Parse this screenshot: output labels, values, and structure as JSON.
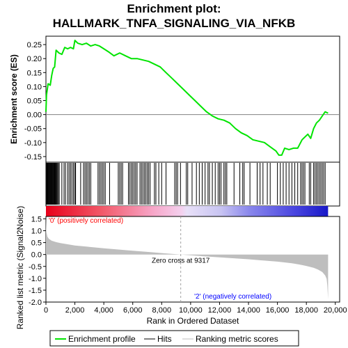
{
  "chart_data": {
    "type": "line",
    "title_line1": "Enrichment plot:",
    "title_line2": "HALLMARK_TNFA_SIGNALING_VIA_NFKB",
    "es_panel": {
      "ylabel": "Enrichment score (ES)",
      "ylim": [
        -0.17,
        0.28
      ],
      "yticks": [
        -0.15,
        -0.1,
        -0.05,
        0.0,
        0.05,
        0.1,
        0.15,
        0.2,
        0.25
      ],
      "ytick_labels": [
        "-0.15",
        "-0.10",
        "-0.05",
        "0.00",
        "0.05",
        "0.10",
        "0.15",
        "0.20",
        "0.25"
      ],
      "line_color": "#00e400",
      "x": [
        0,
        40,
        150,
        300,
        400,
        500,
        600,
        700,
        900,
        1100,
        1300,
        1500,
        1700,
        1900,
        2000,
        2200,
        2500,
        2800,
        3100,
        3400,
        3700,
        4000,
        4300,
        4700,
        5100,
        5500,
        5900,
        6300,
        6700,
        7100,
        7500,
        7900,
        8300,
        8700,
        9100,
        9500,
        9900,
        10300,
        10700,
        11100,
        11500,
        11900,
        12300,
        12700,
        13100,
        13500,
        13900,
        14300,
        14700,
        15100,
        15500,
        15900,
        16100,
        16300,
        16500,
        16800,
        17100,
        17400,
        17700,
        17900,
        18100,
        18300,
        18500,
        18700,
        18900,
        19100,
        19300,
        19500
      ],
      "y": [
        0.01,
        0.07,
        0.11,
        0.105,
        0.14,
        0.165,
        0.17,
        0.23,
        0.22,
        0.215,
        0.24,
        0.235,
        0.24,
        0.235,
        0.265,
        0.255,
        0.25,
        0.255,
        0.245,
        0.25,
        0.245,
        0.235,
        0.225,
        0.21,
        0.22,
        0.21,
        0.2,
        0.2,
        0.195,
        0.19,
        0.18,
        0.17,
        0.15,
        0.13,
        0.11,
        0.09,
        0.07,
        0.05,
        0.03,
        0.01,
        -0.005,
        -0.015,
        -0.02,
        -0.03,
        -0.05,
        -0.065,
        -0.075,
        -0.09,
        -0.095,
        -0.1,
        -0.115,
        -0.13,
        -0.145,
        -0.145,
        -0.12,
        -0.125,
        -0.12,
        -0.12,
        -0.09,
        -0.08,
        -0.07,
        -0.085,
        -0.05,
        -0.03,
        -0.02,
        -0.005,
        0.01,
        0.005
      ]
    },
    "hits_x": [
      20,
      60,
      100,
      140,
      180,
      220,
      260,
      300,
      340,
      380,
      420,
      460,
      500,
      540,
      580,
      620,
      660,
      700,
      740,
      800,
      860,
      920,
      1100,
      1250,
      1350,
      1500,
      1600,
      1700,
      1800,
      1900,
      2000,
      2050,
      2400,
      2600,
      2700,
      2800,
      2900,
      3000,
      3100,
      3600,
      3700,
      3800,
      3900,
      4000,
      4100,
      4400,
      5000,
      5100,
      5200,
      5300,
      5700,
      5800,
      5900,
      6000,
      6100,
      6200,
      6300,
      6500,
      6600,
      6700,
      6800,
      6900,
      7000,
      7100,
      7200,
      7500,
      7600,
      7800,
      8000,
      8300,
      8900,
      9000,
      9100,
      9300,
      9700,
      9800,
      10100,
      10400,
      10600,
      10800,
      11000,
      11200,
      11300,
      11500,
      11700,
      11900,
      12000,
      12100,
      12300,
      12400,
      12500,
      13000,
      13400,
      13600,
      13700,
      14100,
      14600,
      14800,
      15000,
      15300,
      15500,
      16000,
      16200,
      16400,
      16600,
      16800,
      17000,
      17200,
      17400,
      17600,
      17700,
      17800,
      17900,
      18200,
      18300,
      18500,
      18600,
      18700,
      18800,
      18900,
      19000,
      19100,
      19200,
      19300
    ],
    "ranked_panel": {
      "ylabel": "Ranked list metric (Signal2Noise)",
      "ylim": [
        -2.0,
        1.6
      ],
      "yticks": [
        -2.0,
        -1.5,
        -1.0,
        -0.5,
        0.0,
        0.5,
        1.0,
        1.5
      ],
      "ytick_labels": [
        "-2.0",
        "-1.5",
        "-1.0",
        "-0.5",
        "0.0",
        "0.5",
        "1.0",
        "1.5"
      ],
      "x": [
        0,
        30,
        100,
        200,
        400,
        700,
        1000,
        1500,
        2000,
        3000,
        4000,
        5000,
        6000,
        7000,
        8000,
        9317,
        10000,
        11000,
        12000,
        13000,
        14000,
        15000,
        16000,
        17000,
        17500,
        18000,
        18500,
        18800,
        19100,
        19300,
        19400,
        19450,
        19500
      ],
      "y": [
        1.6,
        0.95,
        0.75,
        0.66,
        0.58,
        0.52,
        0.48,
        0.43,
        0.38,
        0.32,
        0.26,
        0.21,
        0.16,
        0.11,
        0.06,
        0.0,
        -0.03,
        -0.08,
        -0.12,
        -0.16,
        -0.2,
        -0.25,
        -0.3,
        -0.37,
        -0.42,
        -0.48,
        -0.56,
        -0.63,
        -0.74,
        -0.88,
        -1.02,
        -1.3,
        -1.88
      ],
      "fill_color": "#bebebe",
      "zero_cross_label": "Zero cross at 9317",
      "zero_cross_x": 9317,
      "pos_label": "'0' (positively correlated)",
      "neg_label": "'2' (negatively correlated)",
      "pos_color": "#ff0000",
      "neg_color": "#0000ff"
    },
    "xaxis": {
      "label": "Rank in Ordered Dataset",
      "xlim": [
        0,
        20300
      ],
      "xticks": [
        0,
        2000,
        4000,
        6000,
        8000,
        10000,
        12000,
        14000,
        16000,
        18000,
        20000
      ],
      "xtick_labels": [
        "0",
        "2,000",
        "4,000",
        "6,000",
        "8,000",
        "10,000",
        "12,000",
        "14,000",
        "16,000",
        "18,000",
        "20,000"
      ]
    },
    "legend": {
      "placement": "bottom",
      "items": [
        {
          "label": "Enrichment profile",
          "color": "#00e400"
        },
        {
          "label": "Hits",
          "color": "#000000"
        },
        {
          "label": "Ranking metric scores",
          "color": "#bebebe"
        }
      ]
    }
  }
}
